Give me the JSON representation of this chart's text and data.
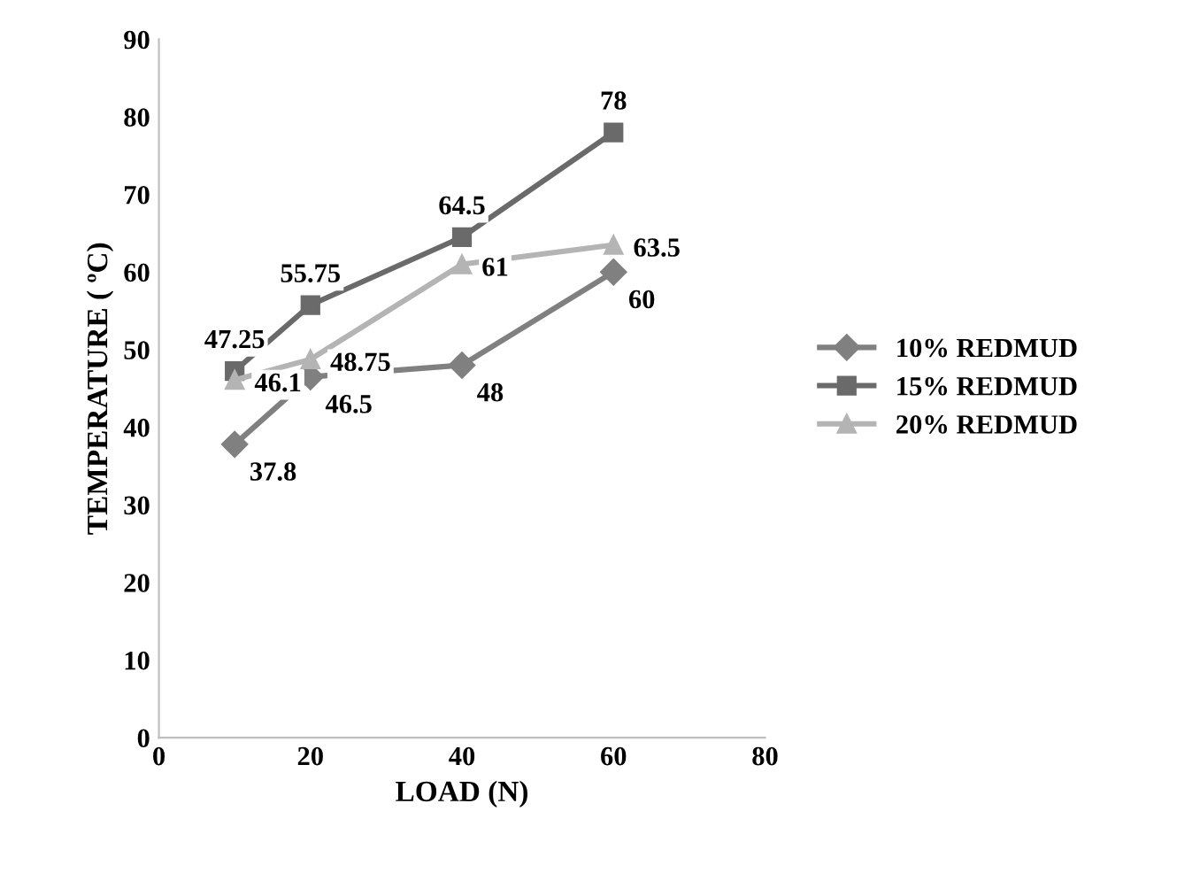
{
  "chart_data": {
    "type": "line",
    "xlabel": "LOAD (N)",
    "ylabel": "TEMPERATURE ( ºC)",
    "x": [
      10,
      20,
      40,
      60
    ],
    "series": [
      {
        "name": "10% REDMUD",
        "color": "#808080",
        "marker": "diamond",
        "values": [
          37.8,
          46.5,
          48,
          60
        ]
      },
      {
        "name": "15% REDMUD",
        "color": "#6a6a6a",
        "marker": "square",
        "values": [
          47.25,
          55.75,
          64.5,
          78
        ]
      },
      {
        "name": "20% REDMUD",
        "color": "#b4b4b4",
        "marker": "triangle",
        "values": [
          46.1,
          48.75,
          61,
          63.5
        ]
      }
    ],
    "xlim": [
      0,
      80
    ],
    "xticks": [
      0,
      20,
      40,
      60,
      80
    ],
    "ylim": [
      0,
      90
    ],
    "yticks": [
      0,
      10,
      20,
      30,
      40,
      50,
      60,
      70,
      80,
      90
    ],
    "grid": false,
    "legend": "right",
    "data_labels": true
  }
}
